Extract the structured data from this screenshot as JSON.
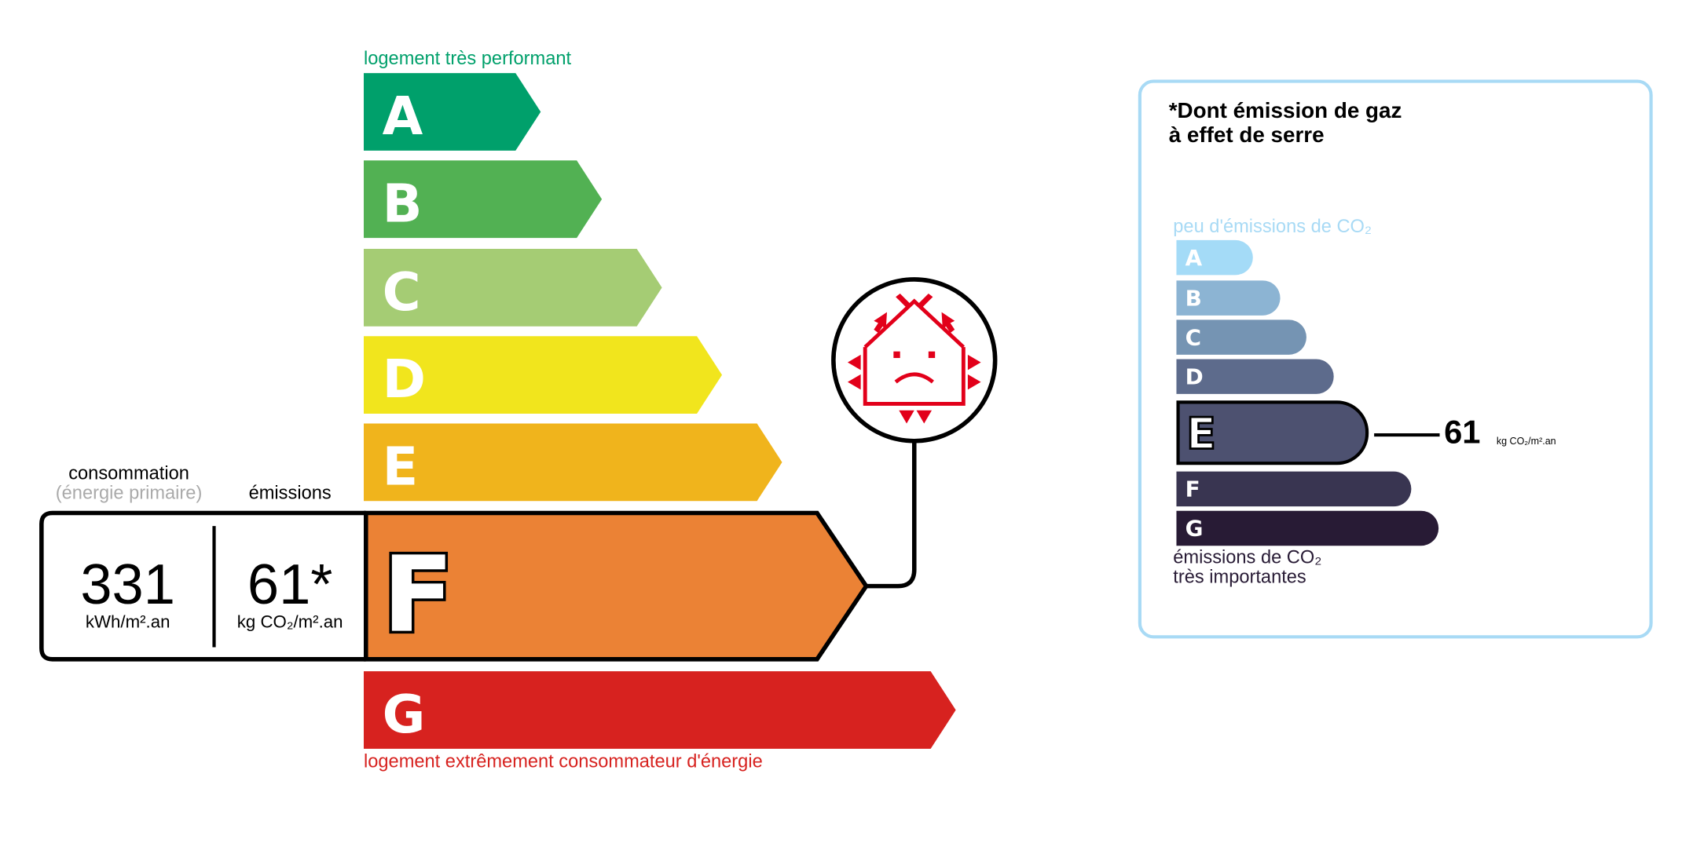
{
  "dpe": {
    "top_label": "logement très performant",
    "bottom_label": "logement extrêmement consommateur d'énergie",
    "top_label_color": "#00a06b",
    "bottom_label_color": "#d7221f",
    "classes": [
      {
        "letter": "A",
        "color": "#00a06b"
      },
      {
        "letter": "B",
        "color": "#52b153"
      },
      {
        "letter": "C",
        "color": "#a5cc74"
      },
      {
        "letter": "D",
        "color": "#f1e51d"
      },
      {
        "letter": "E",
        "color": "#f0b41c"
      },
      {
        "letter": "F",
        "color": "#eb8235"
      },
      {
        "letter": "G",
        "color": "#d7221f"
      }
    ],
    "current_class": "F",
    "consumption_label": "consommation",
    "consumption_sublabel": "(énergie primaire)",
    "emissions_label": "émissions",
    "consumption_value": "331",
    "consumption_unit": "kWh/m².an",
    "emissions_value": "61*",
    "emissions_unit": "kg CO₂/m².an",
    "icon": "sad-house-heat-loss-icon",
    "icon_color": "#e2001a"
  },
  "ges": {
    "title_line1": "*Dont émission de gaz",
    "title_line2": "à effet de serre",
    "top_label": "peu d'émissions de CO₂",
    "bottom_label_line1": "émissions de CO₂",
    "bottom_label_line2": "très importantes",
    "border_color": "#a8daf5",
    "classes": [
      {
        "letter": "A",
        "color": "#a4dbf7"
      },
      {
        "letter": "B",
        "color": "#8cb4d3"
      },
      {
        "letter": "C",
        "color": "#7594b3"
      },
      {
        "letter": "D",
        "color": "#5d6b8c"
      },
      {
        "letter": "E",
        "color": "#4d5170"
      },
      {
        "letter": "F",
        "color": "#393551"
      },
      {
        "letter": "G",
        "color": "#281b35"
      }
    ],
    "current_class": "E",
    "value": "61",
    "unit": "kg CO₂/m².an"
  }
}
